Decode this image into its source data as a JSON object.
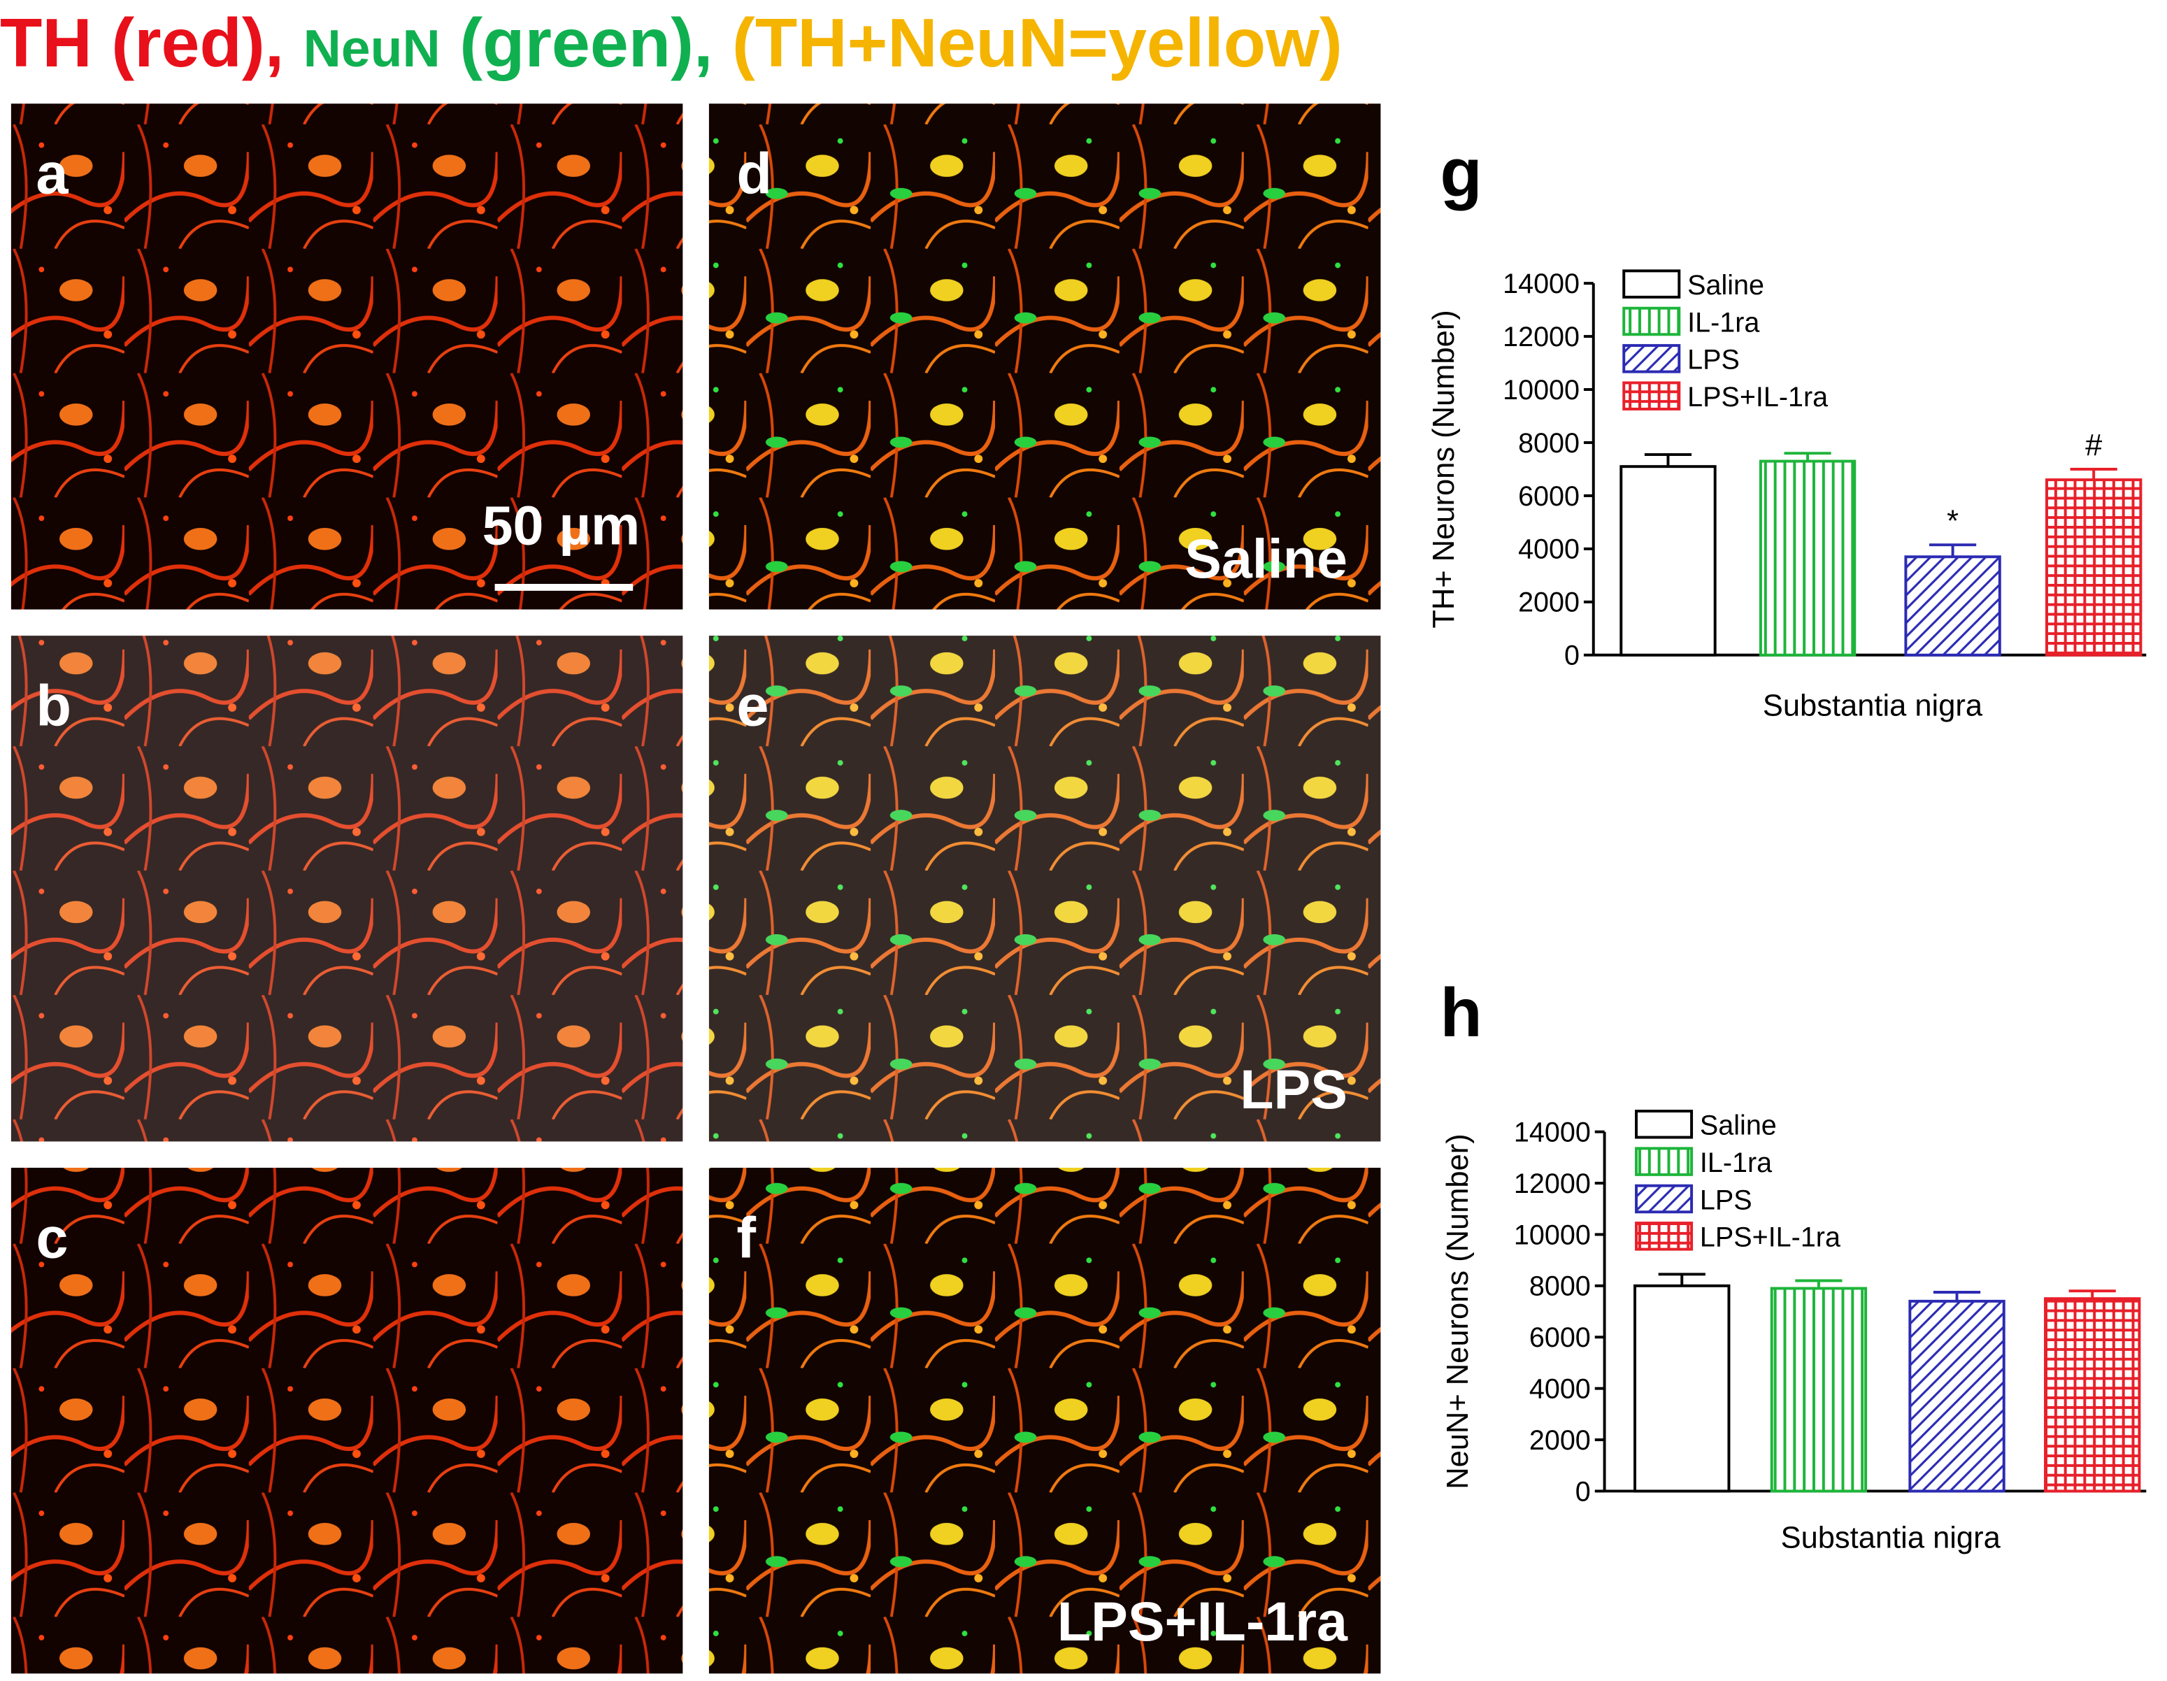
{
  "title_parts": [
    "TH (red),",
    "NeuN",
    "(green),",
    "(TH+NeuN=yellow)"
  ],
  "panels": {
    "labels": [
      "a",
      "b",
      "c",
      "d",
      "e",
      "f",
      "g",
      "h"
    ],
    "conditions": [
      "Saline",
      "LPS",
      "LPS+IL-1ra"
    ],
    "scale_bar": "50 µm"
  },
  "chart_data": [
    {
      "type": "bar",
      "y_label": "TH+ Neurons (Number)",
      "x_label": "Substantia nigra",
      "ylim": [
        0,
        14000
      ],
      "yticks": [
        0,
        2000,
        4000,
        6000,
        8000,
        10000,
        12000,
        14000
      ],
      "series": [
        {
          "name": "Saline",
          "color": "#000000",
          "pattern": "none",
          "values": [
            7100
          ],
          "errors": [
            450
          ]
        },
        {
          "name": "IL-1ra",
          "color": "#1db53a",
          "pattern": "vertical",
          "values": [
            7300
          ],
          "errors": [
            300
          ]
        },
        {
          "name": "LPS",
          "color": "#2b2bb3",
          "pattern": "diagonal",
          "values": [
            3700
          ],
          "errors": [
            450
          ],
          "annotation": "*"
        },
        {
          "name": "LPS+IL-1ra",
          "color": "#e8202a",
          "pattern": "grid",
          "values": [
            6600
          ],
          "errors": [
            400
          ],
          "annotation": "#"
        }
      ]
    },
    {
      "type": "bar",
      "y_label": "NeuN+ Neurons (Number)",
      "x_label": "Substantia nigra",
      "ylim": [
        0,
        14000
      ],
      "yticks": [
        0,
        2000,
        4000,
        6000,
        8000,
        10000,
        12000,
        14000
      ],
      "series": [
        {
          "name": "Saline",
          "color": "#000000",
          "pattern": "none",
          "values": [
            8000
          ],
          "errors": [
            450
          ]
        },
        {
          "name": "IL-1ra",
          "color": "#1db53a",
          "pattern": "vertical",
          "values": [
            7900
          ],
          "errors": [
            300
          ]
        },
        {
          "name": "LPS",
          "color": "#2b2bb3",
          "pattern": "diagonal",
          "values": [
            7400
          ],
          "errors": [
            350
          ]
        },
        {
          "name": "LPS+IL-1ra",
          "color": "#e8202a",
          "pattern": "grid",
          "values": [
            7500
          ],
          "errors": [
            300
          ]
        }
      ]
    }
  ]
}
